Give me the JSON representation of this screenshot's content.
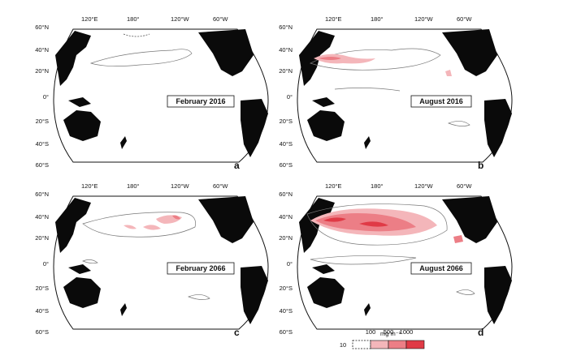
{
  "panels": [
    {
      "id": "a",
      "title": "February 2016",
      "letter": "a"
    },
    {
      "id": "b",
      "title": "August 2016",
      "letter": "b"
    },
    {
      "id": "c",
      "title": "February 2066",
      "letter": "c"
    },
    {
      "id": "d",
      "title": "August 2066",
      "letter": "d"
    }
  ],
  "axes": {
    "lon_labels": [
      "120°E",
      "180°",
      "120°W",
      "60°W"
    ],
    "lat_labels_top": [
      "60°N",
      "40°N",
      "20°N",
      "0°"
    ],
    "lat_labels_bottom": [
      "20°S",
      "40°S",
      "60°S"
    ]
  },
  "legend": {
    "unit": "mg m⁻³",
    "thresholds": [
      "10",
      "100",
      "500",
      "1000"
    ],
    "colors": [
      "#ffffff",
      "#f4b6ba",
      "#ec7e86",
      "#e03a46"
    ]
  },
  "colors": {
    "land": "#0a0a0a",
    "low": "#f4b6ba",
    "mid": "#ec7e86",
    "high": "#e03a46",
    "contour": "#777777"
  }
}
